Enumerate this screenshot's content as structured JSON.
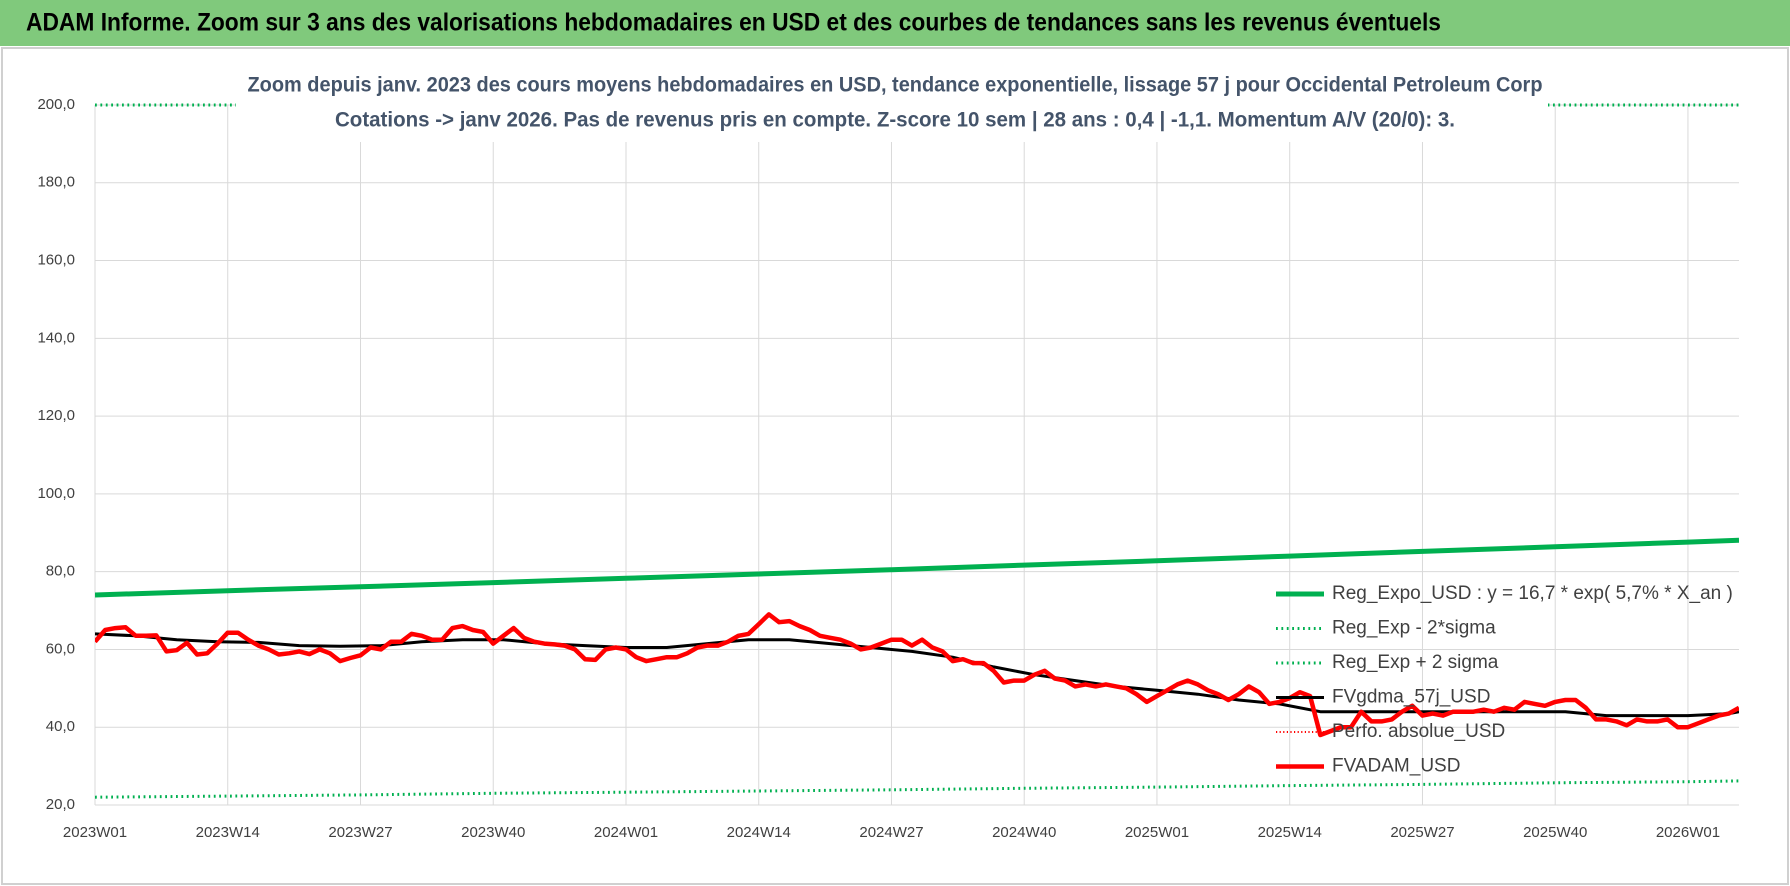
{
  "chart_data": {
    "type": "line",
    "header": "ADAM Informe. Zoom sur 3 ans des valorisations hebdomadaires en USD et des courbes de tendances sans les revenus éventuels",
    "title": "Zoom depuis janv. 2023 des cours moyens hebdomadaires en USD, tendance exponentielle, lissage 57 j pour Occidental Petroleum Corp",
    "subtitle": "Cotations -> janv 2026. Pas de revenus pris en compte. Z-score 10 sem | 28 ans : 0,4 | -1,1. Momentum A/V (20/0): 3.",
    "xlim": [
      0,
      161
    ],
    "xticks": [
      {
        "value": 0,
        "label": "2023W01"
      },
      {
        "value": 13,
        "label": "2023W14"
      },
      {
        "value": 26,
        "label": "2023W27"
      },
      {
        "value": 39,
        "label": "2023W40"
      },
      {
        "value": 52,
        "label": "2024W01"
      },
      {
        "value": 65,
        "label": "2024W14"
      },
      {
        "value": 78,
        "label": "2024W27"
      },
      {
        "value": 91,
        "label": "2024W40"
      },
      {
        "value": 104,
        "label": "2025W01"
      },
      {
        "value": 117,
        "label": "2025W14"
      },
      {
        "value": 130,
        "label": "2025W27"
      },
      {
        "value": 143,
        "label": "2025W40"
      },
      {
        "value": 156,
        "label": "2026W01"
      }
    ],
    "ylim": [
      20,
      200
    ],
    "yticks": [
      {
        "value": 20,
        "label": "20,0"
      },
      {
        "value": 40,
        "label": "40,0"
      },
      {
        "value": 60,
        "label": "60,0"
      },
      {
        "value": 80,
        "label": "80,0"
      },
      {
        "value": 100,
        "label": "100,0"
      },
      {
        "value": 120,
        "label": "120,0"
      },
      {
        "value": 140,
        "label": "140,0"
      },
      {
        "value": 160,
        "label": "160,0"
      },
      {
        "value": 180,
        "label": "180,0"
      },
      {
        "value": 200,
        "label": "200,0"
      }
    ],
    "grid": true,
    "legend": "lower right",
    "series": [
      {
        "name": "Reg_Expo_USD : y = 16,7 * exp( 5,7% *  X_an )",
        "color": "#00b050",
        "style": "solid",
        "width": 5,
        "x": [
          0,
          13,
          26,
          39,
          52,
          65,
          78,
          91,
          104,
          117,
          130,
          143,
          156,
          161
        ],
        "values": [
          74.0,
          75.1,
          76.1,
          77.2,
          78.3,
          79.4,
          80.5,
          81.7,
          82.8,
          84.0,
          85.2,
          86.4,
          87.6,
          88.1
        ]
      },
      {
        "name": "Reg_Exp - 2*sigma",
        "color": "#00b050",
        "style": "dotted",
        "width": 3,
        "x": [
          0,
          13,
          26,
          39,
          52,
          65,
          78,
          91,
          104,
          117,
          130,
          143,
          156,
          161
        ],
        "values": [
          22.0,
          22.3,
          22.6,
          23.0,
          23.3,
          23.6,
          23.9,
          24.3,
          24.6,
          25.0,
          25.3,
          25.7,
          26.0,
          26.2
        ]
      },
      {
        "name": "Reg_Exp + 2 sigma",
        "color": "#00b050",
        "style": "dotted",
        "width": 3,
        "x": [
          0,
          161
        ],
        "values": [
          200,
          200
        ]
      },
      {
        "name": "FVgdma_57j_USD",
        "color": "#000000",
        "style": "solid",
        "width": 3,
        "x": [
          0,
          4,
          8,
          12,
          16,
          20,
          24,
          28,
          32,
          36,
          40,
          44,
          48,
          52,
          56,
          60,
          64,
          68,
          72,
          76,
          80,
          84,
          88,
          92,
          96,
          100,
          104,
          108,
          112,
          116,
          120,
          124,
          128,
          132,
          136,
          140,
          144,
          148,
          152,
          156,
          160,
          161
        ],
        "values": [
          64,
          63.5,
          62.5,
          62,
          61.8,
          61,
          60.8,
          61,
          62,
          62.5,
          62.5,
          61.5,
          61,
          60.5,
          60.5,
          61.5,
          62.5,
          62.5,
          61.5,
          60.5,
          59.5,
          58,
          55.5,
          53.5,
          52,
          50.5,
          49.5,
          48.5,
          47,
          46,
          44,
          44,
          44,
          44,
          44,
          44,
          44,
          43,
          43,
          43,
          43.5,
          44
        ]
      },
      {
        "name": "Perfo. absolue_USD",
        "color": "#ff0000",
        "style": "dotted",
        "width": 2,
        "x": [],
        "values": []
      },
      {
        "name": "FVADAM_USD",
        "color": "#ff0000",
        "style": "solid",
        "width": 4.5,
        "x": [
          0,
          1,
          2,
          3,
          4,
          5,
          6,
          7,
          8,
          9,
          10,
          11,
          12,
          13,
          14,
          15,
          16,
          17,
          18,
          19,
          20,
          21,
          22,
          23,
          24,
          25,
          26,
          27,
          28,
          29,
          30,
          31,
          32,
          33,
          34,
          35,
          36,
          37,
          38,
          39,
          40,
          41,
          42,
          43,
          44,
          45,
          46,
          47,
          48,
          49,
          50,
          51,
          52,
          53,
          54,
          55,
          56,
          57,
          58,
          59,
          60,
          61,
          62,
          63,
          64,
          65,
          66,
          67,
          68,
          69,
          70,
          71,
          72,
          73,
          74,
          75,
          76,
          77,
          78,
          79,
          80,
          81,
          82,
          83,
          84,
          85,
          86,
          87,
          88,
          89,
          90,
          91,
          92,
          93,
          94,
          95,
          96,
          97,
          98,
          99,
          100,
          101,
          102,
          103,
          104,
          105,
          106,
          107,
          108,
          109,
          110,
          111,
          112,
          113,
          114,
          115,
          116,
          117,
          118,
          119,
          120,
          121,
          122,
          123,
          124,
          125,
          126,
          127,
          128,
          129,
          130,
          131,
          132,
          133,
          134,
          135,
          136,
          137,
          138,
          139,
          140,
          141,
          142,
          143,
          144,
          145,
          146,
          147,
          148,
          149,
          150,
          151,
          152,
          153,
          154,
          155,
          156,
          157,
          158,
          159,
          160,
          161
        ],
        "values": [
          62,
          65,
          65.5,
          65.7,
          63.5,
          63.5,
          63.6,
          59.5,
          59.8,
          61.7,
          58.7,
          59,
          61.5,
          64.3,
          64.3,
          62.5,
          61,
          60,
          58.7,
          59,
          59.5,
          58.8,
          60,
          59,
          57,
          57.8,
          58.5,
          60.5,
          60,
          62,
          62,
          64,
          63.5,
          62.5,
          62.5,
          65.5,
          66,
          65,
          64.5,
          61.5,
          63.5,
          65.5,
          63,
          62,
          61.5,
          61.3,
          61,
          60,
          57.5,
          57.3,
          60,
          60.5,
          60,
          58,
          57,
          57.5,
          58,
          58,
          59,
          60.5,
          61,
          61,
          62,
          63.5,
          64,
          66.5,
          69,
          67,
          67.3,
          66,
          65,
          63.5,
          63,
          62.5,
          61.5,
          60,
          60.5,
          61.5,
          62.5,
          62.5,
          61,
          62.5,
          60.5,
          59.5,
          57,
          57.5,
          56.5,
          56.5,
          54.5,
          51.5,
          52,
          52,
          53.5,
          54.5,
          52.5,
          52,
          50.5,
          51,
          50.5,
          51,
          50.5,
          50,
          48.5,
          46.5,
          48,
          49.5,
          51,
          52,
          51,
          49.5,
          48.5,
          47,
          48.5,
          50.5,
          49,
          46,
          46.5,
          47.5,
          49,
          48,
          38,
          39,
          40,
          40,
          44,
          41.5,
          41.5,
          42,
          44,
          45.5,
          43,
          43.5,
          43,
          44,
          44,
          44,
          44.5,
          44,
          45,
          44.5,
          46.5,
          46,
          45.5,
          46.5,
          47,
          47,
          45,
          42,
          42,
          41.5,
          40.5,
          42,
          41.5,
          41.5,
          42,
          40,
          40,
          41,
          42,
          43,
          43.5,
          45
        ]
      }
    ]
  }
}
